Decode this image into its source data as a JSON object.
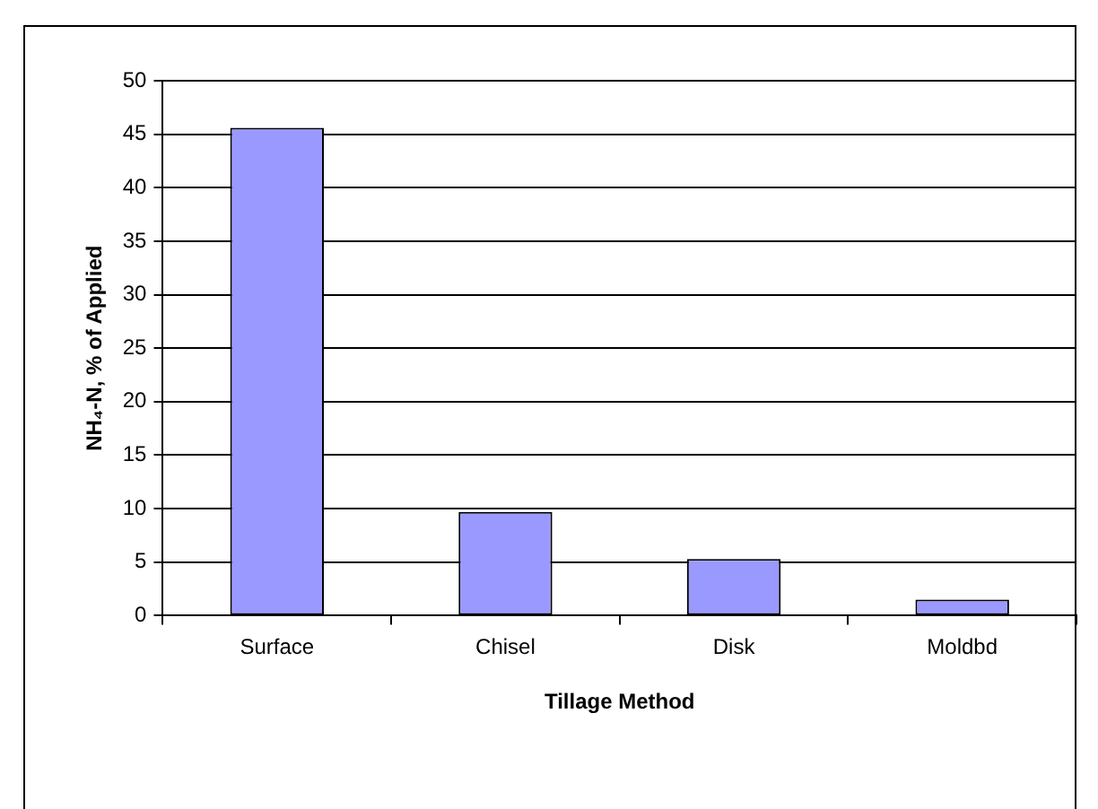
{
  "chart_data": {
    "type": "bar",
    "xlabel": "Tillage Method",
    "ylabel": "NH₄-N, % of Applied",
    "categories": [
      "Surface",
      "Chisel",
      "Disk",
      "Moldbd"
    ],
    "values": [
      45.6,
      9.7,
      5.3,
      1.5
    ],
    "color": "#9999ff",
    "ylim": [
      0,
      50
    ],
    "yticks": [
      0,
      5,
      10,
      15,
      20,
      25,
      30,
      35,
      40,
      45,
      50
    ],
    "grid": "y",
    "legend": false
  }
}
